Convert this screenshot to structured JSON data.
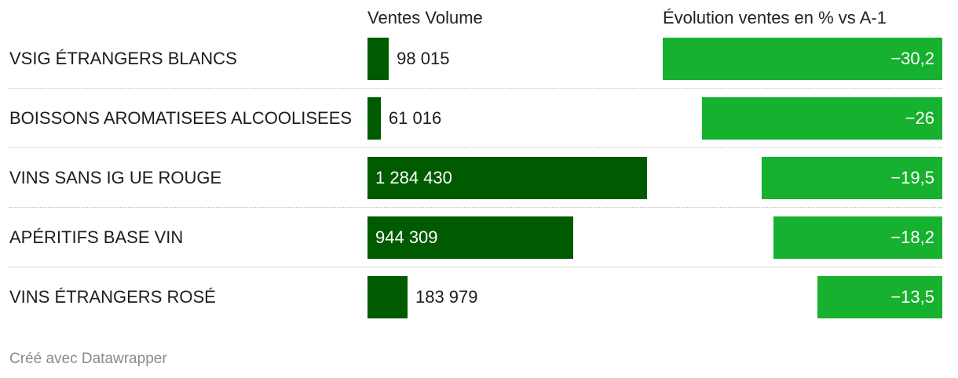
{
  "chart_data": {
    "type": "table",
    "columns": [
      "Ventes Volume",
      "Évolution ventes en % vs A-1"
    ],
    "rows": [
      {
        "label": "VSIG ÉTRANGERS BLANCS",
        "volume": 98015,
        "volume_label": "98 015",
        "evolution": -30.2,
        "evolution_label": "−30,2"
      },
      {
        "label": "BOISSONS AROMATISEES ALCOOLISEES",
        "volume": 61016,
        "volume_label": "61 016",
        "evolution": -26,
        "evolution_label": "−26"
      },
      {
        "label": "VINS SANS IG UE ROUGE",
        "volume": 1284430,
        "volume_label": "1 284 430",
        "evolution": -19.5,
        "evolution_label": "−19,5"
      },
      {
        "label": "APÉRITIFS BASE VIN",
        "volume": 944309,
        "volume_label": "944 309",
        "evolution": -18.2,
        "evolution_label": "−18,2"
      },
      {
        "label": "VINS ÉTRANGERS ROSÉ",
        "volume": 183979,
        "volume_label": "183 979",
        "evolution": -13.5,
        "evolution_label": "−13,5"
      }
    ],
    "colors": {
      "volume_bar": "#005a00",
      "evolution_bar": "#15b12f"
    }
  },
  "footer": "Créé avec Datawrapper"
}
